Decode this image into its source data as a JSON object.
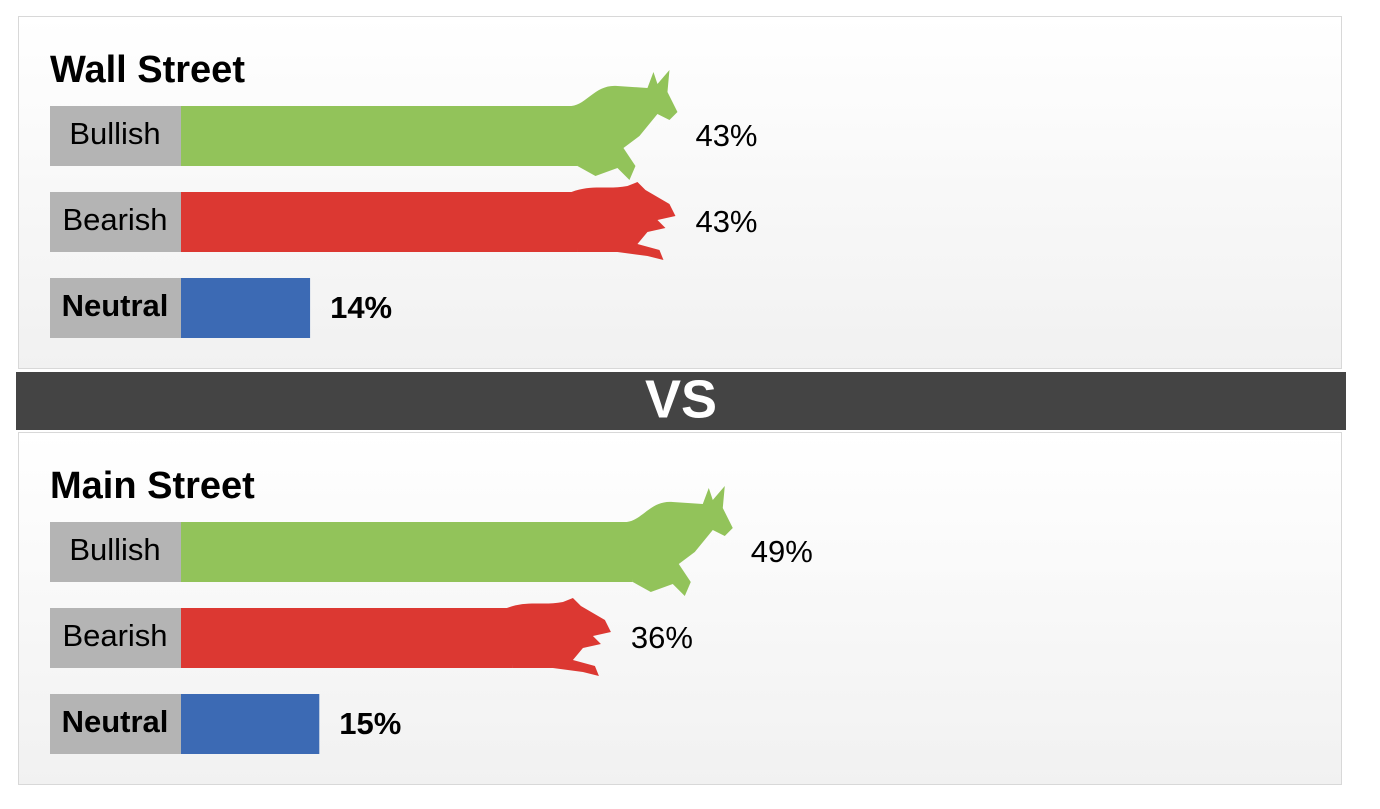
{
  "chart_data": [
    {
      "type": "bar",
      "title": "Wall Street",
      "categories": [
        "Bullish",
        "Bearish",
        "Neutral"
      ],
      "values": [
        43,
        43,
        14
      ],
      "value_labels": [
        "43%",
        "43%",
        "14%"
      ],
      "colors": [
        "#92c35a",
        "#dc3832",
        "#3c6ab4"
      ]
    },
    {
      "type": "bar",
      "title": "Main Street",
      "categories": [
        "Bullish",
        "Bearish",
        "Neutral"
      ],
      "values": [
        49,
        36,
        15
      ],
      "value_labels": [
        "49%",
        "36%",
        "15%"
      ],
      "colors": [
        "#92c35a",
        "#dc3832",
        "#3c6ab4"
      ]
    }
  ],
  "divider": "VS"
}
